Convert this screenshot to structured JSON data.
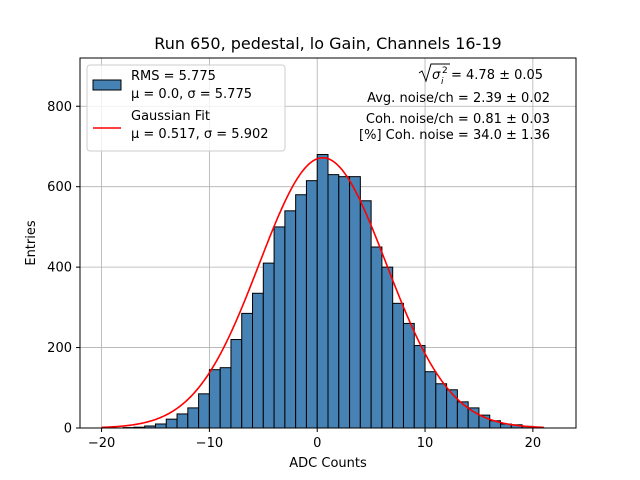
{
  "chart_data": {
    "type": "bar",
    "title": "Run 650, pedestal, lo Gain, Channels 16-19",
    "xlabel": "ADC Counts",
    "ylabel": "Entries",
    "xlim": [
      -22,
      24
    ],
    "ylim": [
      0,
      920
    ],
    "xticks": [
      -20,
      -10,
      0,
      10,
      20
    ],
    "yticks": [
      0,
      200,
      400,
      600,
      800
    ],
    "grid": true,
    "bin_width": 1,
    "bins": [
      -20,
      -19,
      -18,
      -17,
      -16,
      -15,
      -14,
      -13,
      -12,
      -11,
      -10,
      -9,
      -8,
      -7,
      -6,
      -5,
      -4,
      -3,
      -2,
      -1,
      0,
      1,
      2,
      3,
      4,
      5,
      6,
      7,
      8,
      9,
      10,
      11,
      12,
      13,
      14,
      15,
      16,
      17,
      18,
      19,
      20,
      21
    ],
    "counts": [
      0,
      0,
      1,
      2,
      5,
      10,
      22,
      35,
      50,
      85,
      145,
      150,
      220,
      285,
      335,
      410,
      500,
      540,
      580,
      615,
      680,
      630,
      625,
      625,
      565,
      450,
      400,
      310,
      260,
      205,
      140,
      110,
      95,
      65,
      50,
      32,
      18,
      10,
      8,
      4,
      1,
      0
    ],
    "hist_color": "#4682b4",
    "fit": {
      "name": "Gaussian Fit",
      "amplitude": 672,
      "mu": 0.517,
      "sigma": 5.902,
      "range": [
        -20,
        21
      ],
      "color": "#ff0000"
    },
    "legend": {
      "position": "top-left",
      "hist_line1": "RMS = 5.775",
      "hist_line2": "μ = 0.0, σ = 5.775",
      "fit_line1": "Gaussian Fit",
      "fit_line2": "μ = 0.517, σ = 5.902"
    },
    "annotations": {
      "total_noise": " = 4.78 ± 0.05",
      "avg_noise": "Avg. noise/ch = 2.39 ± 0.02",
      "coh_noise": "Coh. noise/ch = 0.81 ± 0.03",
      "coh_percent": "[%] Coh. noise = 34.0 ± 1.36"
    }
  }
}
